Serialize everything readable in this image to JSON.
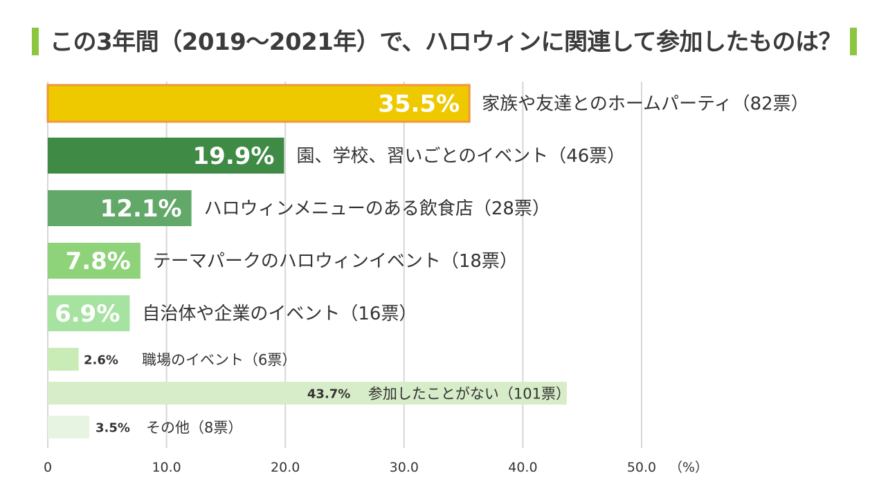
{
  "chart_data": {
    "type": "bar",
    "orientation": "horizontal",
    "title": "この3年間（2019～2021年）で、ハロウィンに関連して参加したものは？",
    "xlabel": "（%）",
    "xlim": [
      0,
      50
    ],
    "xticks": [
      "0",
      "10.0",
      "20.0",
      "30.0",
      "40.0",
      "50.0"
    ],
    "grid": true,
    "categories": [
      "家族や友達とのホームパーティ（82票）",
      "園、学校、習いごとのイベント（46票）",
      "ハロウィンメニューのある飲食店（28票）",
      "テーマパークのハロウィンイベント（18票）",
      "自治体や企業のイベント（16票）",
      "職場のイベント（6票）",
      "参加したことがない（101票）",
      "その他（8票）"
    ],
    "values": [
      35.5,
      19.9,
      12.1,
      7.8,
      6.9,
      2.6,
      43.7,
      3.5
    ],
    "value_labels": [
      "35.5%",
      "19.9%",
      "12.1%",
      "7.8%",
      "6.9%",
      "2.6%",
      "43.7%",
      "3.5%"
    ],
    "colors": [
      "#eec900",
      "#3f8a45",
      "#62a868",
      "#8ed27a",
      "#a6e2a0",
      "#c9ecb6",
      "#d7ecc8",
      "#e8f4e2"
    ],
    "highlight_border": "#f0963c",
    "grid_color": "#d6d6d6"
  }
}
